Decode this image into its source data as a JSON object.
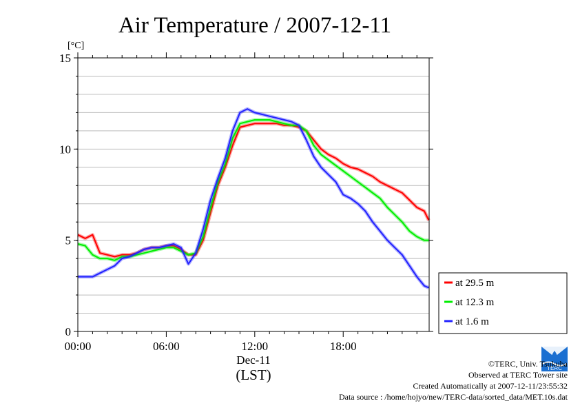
{
  "chart_data": {
    "type": "line",
    "title": "Air Temperature / 2007-12-11",
    "ylabel": "[°C]",
    "xlabel": "(LST)",
    "date_label": "Dec-11",
    "x_ticks": [
      "00:00",
      "06:00",
      "12:00",
      "18:00"
    ],
    "x_tick_hours": [
      0,
      6,
      12,
      18
    ],
    "xlim_hours": [
      0,
      23.83
    ],
    "y_ticks": [
      "0",
      "5",
      "10",
      "15"
    ],
    "ylim": [
      0,
      15
    ],
    "grid": true,
    "legend_position": "lower-right outside",
    "x_hours": [
      0,
      0.5,
      1,
      1.5,
      2,
      2.5,
      3,
      3.5,
      4,
      4.5,
      5,
      5.5,
      6,
      6.5,
      7,
      7.5,
      8,
      8.5,
      9,
      9.5,
      10,
      10.5,
      11,
      11.5,
      12,
      12.5,
      13,
      13.5,
      14,
      14.5,
      15,
      15.5,
      16,
      16.5,
      17,
      17.5,
      18,
      18.5,
      19,
      19.5,
      20,
      20.5,
      21,
      21.5,
      22,
      22.5,
      23,
      23.5,
      23.8
    ],
    "series": [
      {
        "name": "at 29.5 m",
        "color": "#ff0000",
        "values": [
          5.3,
          5.1,
          5.3,
          4.3,
          4.2,
          4.1,
          4.2,
          4.2,
          4.3,
          4.5,
          4.6,
          4.6,
          4.7,
          4.7,
          4.5,
          4.2,
          4.2,
          5.0,
          6.5,
          8.0,
          9.0,
          10.2,
          11.2,
          11.3,
          11.4,
          11.4,
          11.4,
          11.4,
          11.3,
          11.3,
          11.2,
          11.0,
          10.5,
          10.0,
          9.7,
          9.5,
          9.2,
          9.0,
          8.9,
          8.7,
          8.5,
          8.2,
          8.0,
          7.8,
          7.6,
          7.2,
          6.8,
          6.6,
          6.1
        ]
      },
      {
        "name": "at 12.3 m",
        "color": "#00ee00",
        "values": [
          4.8,
          4.7,
          4.2,
          4.0,
          4.0,
          3.9,
          4.1,
          4.1,
          4.2,
          4.3,
          4.4,
          4.5,
          4.6,
          4.6,
          4.4,
          4.2,
          4.3,
          5.2,
          6.8,
          8.2,
          9.2,
          10.6,
          11.4,
          11.5,
          11.6,
          11.6,
          11.6,
          11.5,
          11.4,
          11.3,
          11.3,
          11.0,
          10.2,
          9.7,
          9.4,
          9.1,
          8.8,
          8.5,
          8.2,
          7.9,
          7.6,
          7.3,
          6.8,
          6.4,
          6.0,
          5.5,
          5.2,
          5.0,
          5.0
        ]
      },
      {
        "name": "at 1.6 m",
        "color": "#2222ff",
        "values": [
          3.0,
          3.0,
          3.0,
          3.2,
          3.4,
          3.6,
          4.0,
          4.1,
          4.3,
          4.5,
          4.6,
          4.6,
          4.7,
          4.8,
          4.6,
          3.7,
          4.3,
          5.6,
          7.2,
          8.4,
          9.5,
          11.0,
          12.0,
          12.2,
          12.0,
          11.9,
          11.8,
          11.7,
          11.6,
          11.5,
          11.3,
          10.5,
          9.6,
          9.0,
          8.6,
          8.2,
          7.5,
          7.3,
          7.0,
          6.6,
          6.0,
          5.5,
          5.0,
          4.6,
          4.2,
          3.6,
          3.0,
          2.5,
          2.4
        ]
      }
    ]
  },
  "credits": {
    "copyright": "©TERC, Univ. Tsukuba",
    "observed": "Observed at TERC Tower site",
    "created": "Created Automatically at 2007-12-11/23:55:32",
    "source": "Data source : /home/hojyo/new/TERC-data/sorted_data/MET.10s.dat"
  },
  "logo": {
    "text": "TERC",
    "color": "#1a6fd1",
    "icon": "terc-logo-icon"
  }
}
